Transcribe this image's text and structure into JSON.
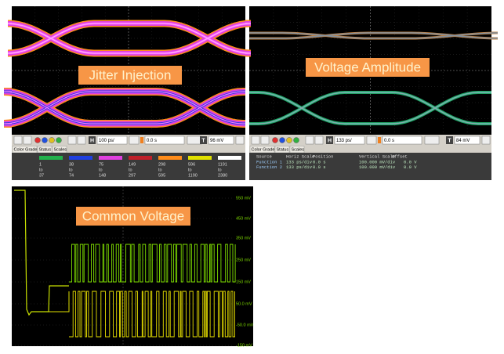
{
  "panels": [
    {
      "label": "Jitter Injection",
      "toolbar": {
        "h_icon": "H",
        "timebase": "100 ps/",
        "position": "0.0 s",
        "t_icon": "T",
        "trigger": "96 mV"
      },
      "tabs": [
        "Color Grade",
        "Status",
        "Scales"
      ],
      "color_grade": [
        {
          "color": "#22b14c",
          "lines": [
            "1",
            "to",
            "37"
          ]
        },
        {
          "color": "#1f3fe0",
          "lines": [
            "38",
            "to",
            "74"
          ]
        },
        {
          "color": "#e040e0",
          "lines": [
            "75",
            "to",
            "148"
          ]
        },
        {
          "color": "#c0202a",
          "lines": [
            "149",
            "to",
            "297"
          ]
        },
        {
          "color": "#ff8c1a",
          "lines": [
            "298",
            "to",
            "595"
          ]
        },
        {
          "color": "#e0e000",
          "lines": [
            "596",
            "to",
            "1190"
          ]
        },
        {
          "color": "#ffffff",
          "lines": [
            "1191",
            "to",
            "2380"
          ]
        }
      ]
    },
    {
      "label": "Voltage Amplitude",
      "toolbar": {
        "h_icon": "H",
        "timebase": "133 ps/",
        "position": "0.0 s",
        "t_icon": "T",
        "trigger": "84 mV"
      },
      "tabs": [
        "Color Grade",
        "Status",
        "Scales"
      ],
      "scales": {
        "columns": [
          "Source",
          "Horiz Scale",
          "Position",
          "Vertical Scale",
          "Offset"
        ],
        "rows": [
          [
            "Function 1",
            "133 ps/div",
            "0.0 s",
            "100.000 mV/div",
            "0.0 V"
          ],
          [
            "Function 2",
            "133 ps/div",
            "0.0 s",
            "100.000 mV/div",
            "0.0 V"
          ]
        ]
      }
    },
    {
      "label": "Common Voltage",
      "y_labels": [
        "550 mV",
        "450 mV",
        "350 mV",
        "250 mV",
        "150 mV",
        "50.0 mV",
        "-50.0 mV",
        "-150 mV"
      ]
    }
  ]
}
